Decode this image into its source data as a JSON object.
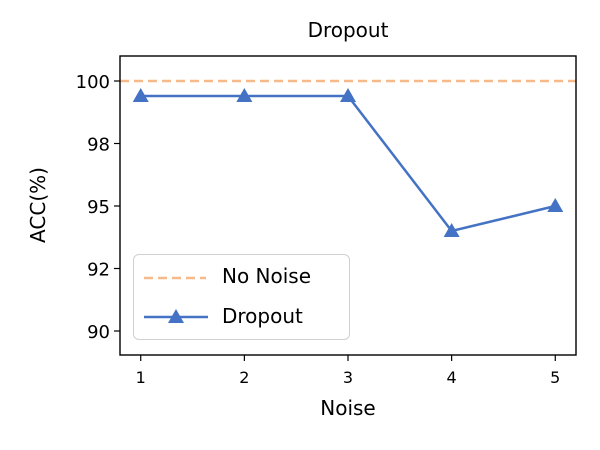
{
  "chart_data": {
    "type": "line",
    "title": "Dropout",
    "xlabel": "Noise",
    "ylabel": "ACC(%)",
    "x": [
      1,
      2,
      3,
      4,
      5
    ],
    "x_tick_labels": [
      "1",
      "2",
      "3",
      "4",
      "5"
    ],
    "y_ticks": [
      100,
      97.5,
      95,
      92.5,
      90
    ],
    "y_tick_labels": [
      "100",
      "98",
      "95",
      "92",
      "90"
    ],
    "ylim": [
      89.0,
      101.0
    ],
    "xlim": [
      0.8,
      5.2
    ],
    "grid": false,
    "legend_position": "lower left",
    "series": [
      {
        "name": "No Noise",
        "style": "dashed",
        "color": "#f7b98a",
        "values": [
          100,
          100,
          100,
          100,
          100
        ]
      },
      {
        "name": "Dropout",
        "style": "solid",
        "marker": "triangle-up",
        "color": "#4472c4",
        "values": [
          99.4,
          99.4,
          99.4,
          94.0,
          95.0
        ]
      }
    ]
  }
}
